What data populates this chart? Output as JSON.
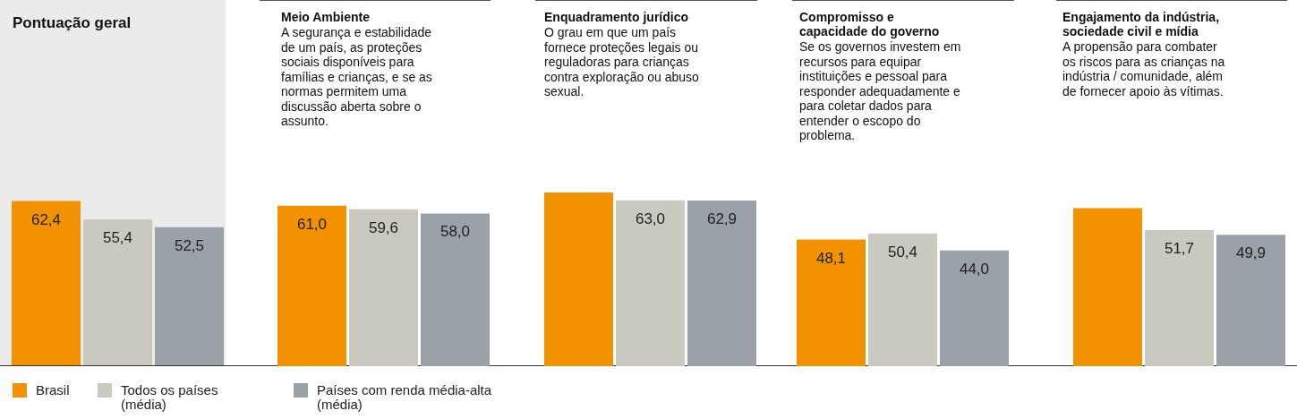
{
  "chart_data": [
    {
      "type": "bar",
      "title": "Pontuação geral",
      "categories": [
        null
      ],
      "legend": "bottom",
      "series": [
        {
          "name": "Brasil",
          "color": "#f39200",
          "values": [
            62.4
          ],
          "value_labels": [
            "62,4"
          ]
        },
        {
          "name": "Todos os países (média)",
          "color": "#c9c9c0",
          "values": [
            55.4
          ],
          "value_labels": [
            "55,4"
          ]
        },
        {
          "name": "Países com renda média-alta (média)",
          "color": "#9ba1a9",
          "values": [
            52.5
          ],
          "value_labels": [
            "52,5"
          ]
        }
      ]
    },
    {
      "type": "bar",
      "title": "Meio Ambiente",
      "subtitle": "A segurança e estabilidade\nde um país, as proteções\nsociais disponíveis para\nfamílias e crianças, e se as\nnormas permitem uma\ndiscussão aberta sobre o\nassunto.",
      "categories": [
        null
      ],
      "series": [
        {
          "color": "#f39200",
          "values": [
            61.0
          ],
          "value_labels": [
            "61,0"
          ]
        },
        {
          "color": "#c9c9c0",
          "values": [
            59.6
          ],
          "value_labels": [
            "59,6"
          ]
        },
        {
          "color": "#9ba1a9",
          "values": [
            58.0
          ],
          "value_labels": [
            "58,0"
          ]
        }
      ]
    },
    {
      "type": "bar",
      "title": "Enquadramento jurídico",
      "subtitle": "O grau em que um país\nfornece proteções legais ou\nreguladoras para crianças\ncontra exploração ou abuso\nsexual.",
      "categories": [
        null
      ],
      "series": [
        {
          "color": "#f39200",
          "values": [
            66
          ],
          "value_labels": [
            null
          ]
        },
        {
          "color": "#c9c9c0",
          "values": [
            63.0
          ],
          "value_labels": [
            "63,0"
          ]
        },
        {
          "color": "#9ba1a9",
          "values": [
            62.9
          ],
          "value_labels": [
            "62,9"
          ]
        }
      ]
    },
    {
      "type": "bar",
      "title": "Compromisso e\ncapacidade do governo",
      "subtitle": "Se os governos investem em\nrecursos para equipar\ninstituições e pessoal para\nresponder adequadamente e\npara coletar dados para\nentender o escopo do\nproblema.",
      "categories": [
        null
      ],
      "series": [
        {
          "color": "#f39200",
          "values": [
            48.1
          ],
          "value_labels": [
            "48,1"
          ]
        },
        {
          "color": "#c9c9c0",
          "values": [
            50.4
          ],
          "value_labels": [
            "50,4"
          ]
        },
        {
          "color": "#9ba1a9",
          "values": [
            44.0
          ],
          "value_labels": [
            "44,0"
          ]
        }
      ]
    },
    {
      "type": "bar",
      "title": "Engajamento da indústria,\nsociedade civil e mídia",
      "subtitle": "A propensão para combater\nos riscos para as crianças na\nindústria / comunidade, além\nde fornecer apoio às vítimas.",
      "categories": [
        null
      ],
      "series": [
        {
          "color": "#f39200",
          "values": [
            60
          ],
          "value_labels": [
            null
          ]
        },
        {
          "color": "#c9c9c0",
          "values": [
            51.7
          ],
          "value_labels": [
            "51,7"
          ]
        },
        {
          "color": "#9ba1a9",
          "values": [
            49.9
          ],
          "value_labels": [
            "49,9"
          ]
        }
      ]
    }
  ]
}
